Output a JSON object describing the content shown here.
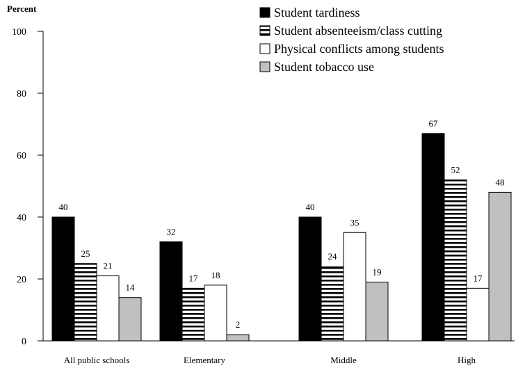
{
  "chart_data": {
    "type": "bar",
    "ylabel": "Percent",
    "ylim": [
      0,
      100
    ],
    "yticks": [
      0,
      20,
      40,
      60,
      80,
      100
    ],
    "grid": false,
    "legend_position": "top-right",
    "categories": [
      "All public schools",
      "Elementary",
      "Middle",
      "High"
    ],
    "series": [
      {
        "name": "Student tardiness",
        "values": [
          40,
          32,
          40,
          67
        ],
        "fill": "#000000",
        "pattern": "solid"
      },
      {
        "name": "Student absenteeism/class cutting",
        "values": [
          25,
          17,
          24,
          52
        ],
        "fill": "#ffffff",
        "pattern": "horizontal-stripes"
      },
      {
        "name": "Physical conflicts among students",
        "values": [
          21,
          18,
          35,
          17
        ],
        "fill": "#ffffff",
        "pattern": "none"
      },
      {
        "name": "Student tobacco use",
        "values": [
          14,
          2,
          19,
          48
        ],
        "fill": "#c0c0c0",
        "pattern": "solid"
      }
    ]
  }
}
